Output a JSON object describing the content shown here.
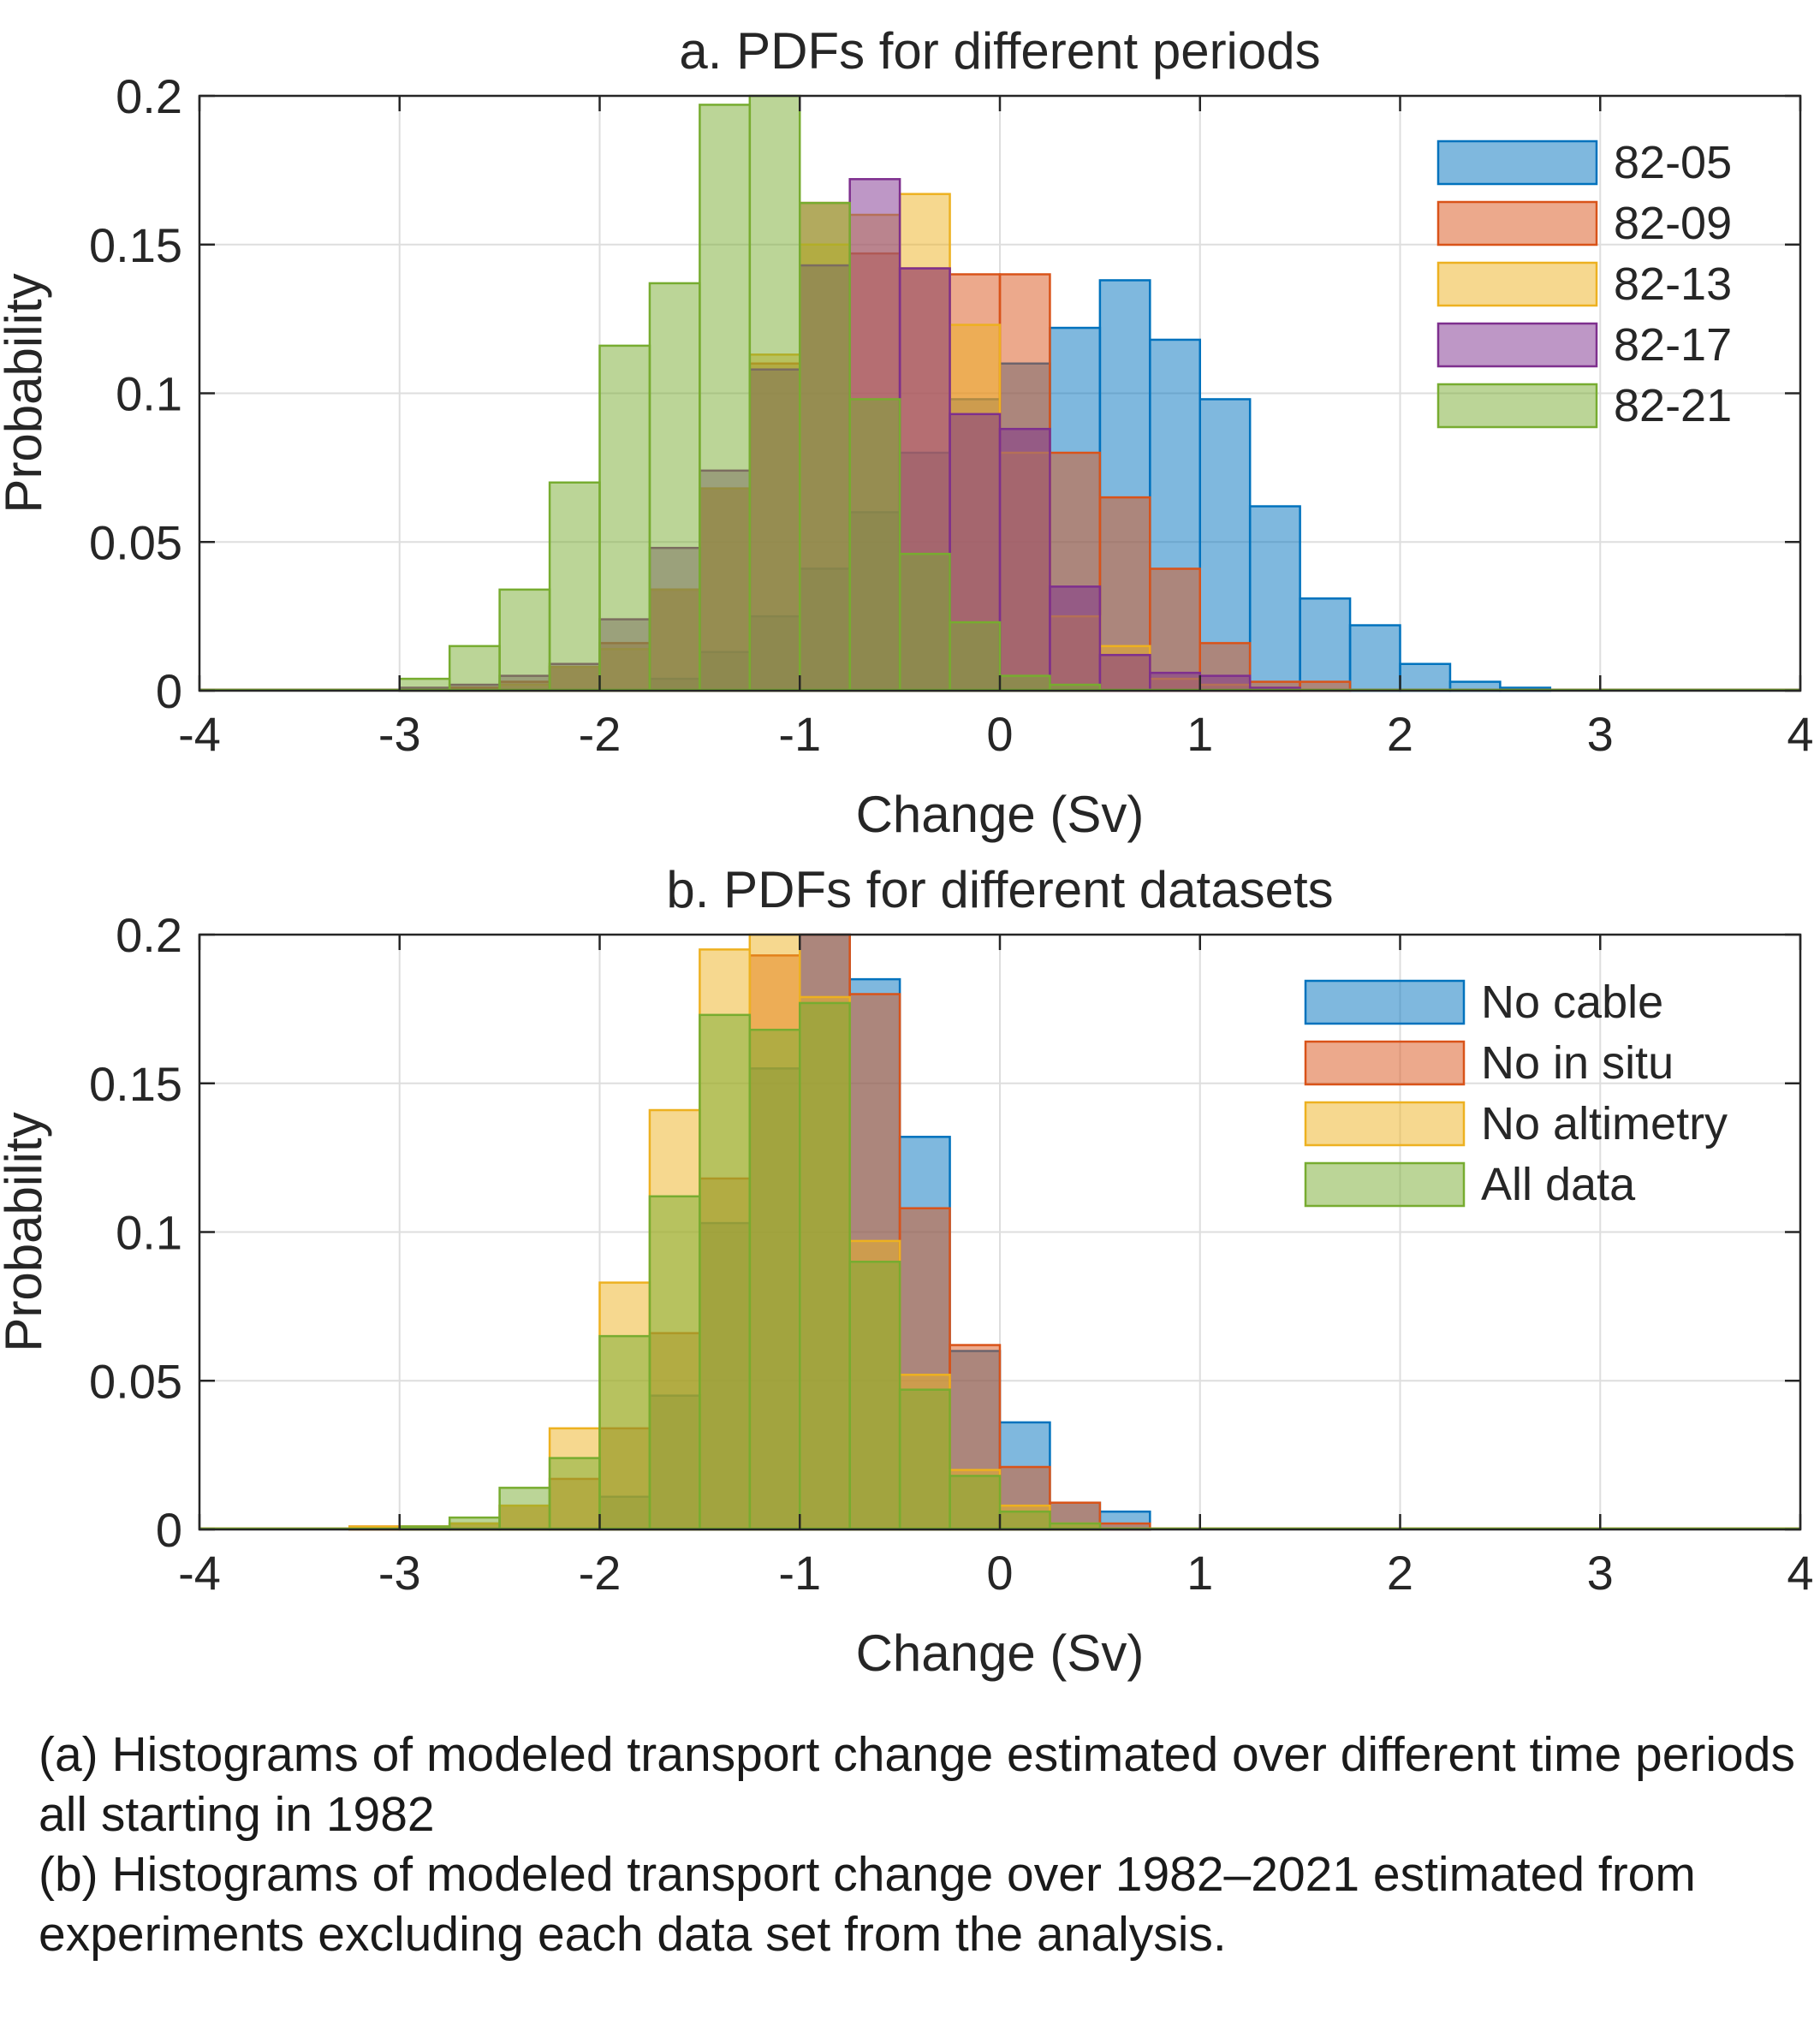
{
  "chart_data": [
    {
      "type": "histogram",
      "title": "a. PDFs for different periods",
      "xlabel": "Change (Sv)",
      "ylabel": "Probability",
      "xlim": [
        -4,
        4
      ],
      "ylim": [
        0,
        0.2
      ],
      "xticks": [
        "-4",
        "-3",
        "-2",
        "-1",
        "0",
        "1",
        "2",
        "3",
        "4"
      ],
      "yticks": [
        "0",
        "0.05",
        "0.1",
        "0.15",
        "0.2"
      ],
      "grid": true,
      "legend_position": "top-right",
      "bin_width": 0.25,
      "bin_edges_start": -3.25,
      "series": [
        {
          "name": "82-05",
          "color": "#0072BD",
          "values": [
            0,
            0,
            0,
            0,
            0,
            0,
            0.004,
            0.013,
            0.025,
            0.041,
            0.06,
            0.08,
            0.098,
            0.11,
            0.122,
            0.138,
            0.118,
            0.098,
            0.062,
            0.031,
            0.022,
            0.009,
            0.003,
            0.001,
            0,
            0
          ]
        },
        {
          "name": "82-09",
          "color": "#D95319",
          "values": [
            0,
            0,
            0.001,
            0.003,
            0.008,
            0.016,
            0.034,
            0.068,
            0.11,
            0.164,
            0.147,
            0.142,
            0.14,
            0.14,
            0.08,
            0.065,
            0.041,
            0.016,
            0.003,
            0.003,
            0,
            0,
            0,
            0,
            0,
            0
          ]
        },
        {
          "name": "82-13",
          "color": "#EDB120",
          "values": [
            0,
            0,
            0,
            0.002,
            0.008,
            0.014,
            0.034,
            0.068,
            0.113,
            0.15,
            0.16,
            0.167,
            0.123,
            0.08,
            0.025,
            0.015,
            0.004,
            0.002,
            0.001,
            0,
            0,
            0,
            0,
            0,
            0,
            0
          ]
        },
        {
          "name": "82-17",
          "color": "#7E2F8E",
          "values": [
            0,
            0.001,
            0.002,
            0.005,
            0.009,
            0.024,
            0.048,
            0.074,
            0.108,
            0.143,
            0.172,
            0.142,
            0.093,
            0.088,
            0.035,
            0.012,
            0.006,
            0.005,
            0.001,
            0,
            0,
            0,
            0,
            0,
            0,
            0
          ]
        },
        {
          "name": "82-21",
          "color": "#77AC30",
          "values": [
            0,
            0.004,
            0.015,
            0.034,
            0.07,
            0.116,
            0.137,
            0.197,
            0.2,
            0.164,
            0.098,
            0.046,
            0.023,
            0.005,
            0.002,
            0,
            0,
            0,
            0,
            0,
            0,
            0,
            0,
            0,
            0,
            0
          ]
        }
      ]
    },
    {
      "type": "histogram",
      "title": "b. PDFs for different datasets",
      "xlabel": "Change (Sv)",
      "ylabel": "Probability",
      "xlim": [
        -4,
        4
      ],
      "ylim": [
        0,
        0.2
      ],
      "xticks": [
        "-4",
        "-3",
        "-2",
        "-1",
        "0",
        "1",
        "2",
        "3",
        "4"
      ],
      "yticks": [
        "0",
        "0.05",
        "0.1",
        "0.15",
        "0.2"
      ],
      "grid": true,
      "legend_position": "top-right",
      "bin_width": 0.25,
      "bin_edges_start": -3.25,
      "series": [
        {
          "name": "No cable",
          "color": "#0072BD",
          "values": [
            0,
            0,
            0,
            0,
            0,
            0.011,
            0.045,
            0.103,
            0.155,
            0.2,
            0.185,
            0.132,
            0.06,
            0.036,
            0.009,
            0.006,
            0,
            0,
            0,
            0,
            0,
            0,
            0,
            0,
            0,
            0
          ]
        },
        {
          "name": "No in situ",
          "color": "#D95319",
          "values": [
            0.001,
            0.001,
            0.002,
            0.008,
            0.017,
            0.034,
            0.066,
            0.118,
            0.193,
            0.2,
            0.18,
            0.108,
            0.062,
            0.021,
            0.009,
            0.002,
            0,
            0,
            0,
            0,
            0,
            0,
            0,
            0,
            0,
            0
          ]
        },
        {
          "name": "No altimetry",
          "color": "#EDB120",
          "values": [
            0.001,
            0.001,
            0.002,
            0.008,
            0.034,
            0.083,
            0.141,
            0.195,
            0.2,
            0.179,
            0.097,
            0.052,
            0.02,
            0.008,
            0.002,
            0,
            0,
            0,
            0,
            0,
            0,
            0,
            0,
            0,
            0,
            0
          ]
        },
        {
          "name": "All data",
          "color": "#77AC30",
          "values": [
            0,
            0.001,
            0.004,
            0.014,
            0.024,
            0.065,
            0.112,
            0.173,
            0.168,
            0.177,
            0.09,
            0.047,
            0.018,
            0.006,
            0.002,
            0,
            0,
            0,
            0,
            0,
            0,
            0,
            0,
            0,
            0,
            0
          ]
        }
      ]
    }
  ],
  "captions": {
    "a": "(a) Histograms of modeled transport change estimated over different time periods all starting in 1982",
    "b": "(b) Histograms of modeled transport change over 1982–2021 estimated from experiments excluding each data set from the analysis."
  }
}
